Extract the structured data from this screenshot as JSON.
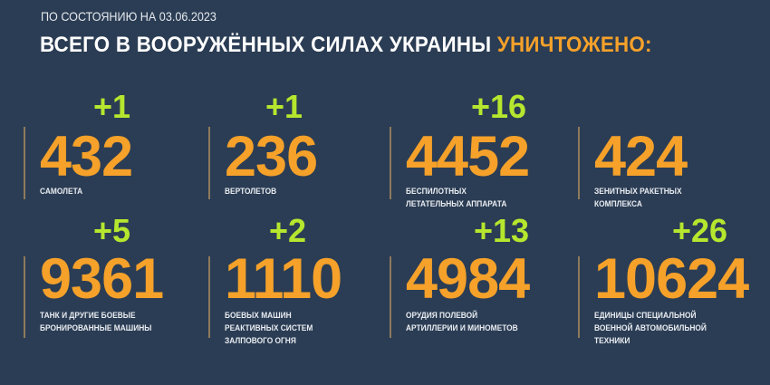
{
  "header": {
    "date_line": "ПО СОСТОЯНИЮ НА 03.06.2023",
    "title_main": "ВСЕГО В ВООРУЖЁННЫХ СИЛАХ УКРАИНЫ",
    "title_accent": "УНИЧТОЖЕНО:"
  },
  "colors": {
    "background": "#2b3d54",
    "number": "#f5a12a",
    "increment": "#b6e62e",
    "text": "#ffffff"
  },
  "stats": [
    {
      "value": "432",
      "increment": "+1",
      "label": [
        "САМОЛЕТА"
      ]
    },
    {
      "value": "236",
      "increment": "+1",
      "label": [
        "ВЕРТОЛЕТОВ"
      ]
    },
    {
      "value": "4452",
      "increment": "+16",
      "label": [
        "БЕСПИЛОТНЫХ",
        "ЛЕТАТЕЛЬНЫХ АППАРАТА"
      ]
    },
    {
      "value": "424",
      "increment": null,
      "label": [
        "ЗЕНИТНЫХ РАКЕТНЫХ",
        "КОМПЛЕКСА"
      ]
    },
    {
      "value": "9361",
      "increment": "+5",
      "label": [
        "ТАНК И ДРУГИЕ БОЕВЫЕ",
        "БРОНИРОВАННЫЕ МАШИНЫ"
      ]
    },
    {
      "value": "1110",
      "increment": "+2",
      "label": [
        "БОЕВЫХ МАШИН",
        "РЕАКТИВНЫХ СИСТЕМ",
        "ЗАЛПОВОГО ОГНЯ"
      ]
    },
    {
      "value": "4984",
      "increment": "+13",
      "label": [
        "ОРУДИЯ ПОЛЕВОЙ",
        "АРТИЛЛЕРИИ И МИНОМЕТОВ"
      ]
    },
    {
      "value": "10624",
      "increment": "+26",
      "label": [
        "ЕДИНИЦЫ СПЕЦИАЛЬНОЙ",
        "ВОЕННОЙ АВТОМОБИЛЬНОЙ",
        "ТЕХНИКИ"
      ]
    }
  ]
}
